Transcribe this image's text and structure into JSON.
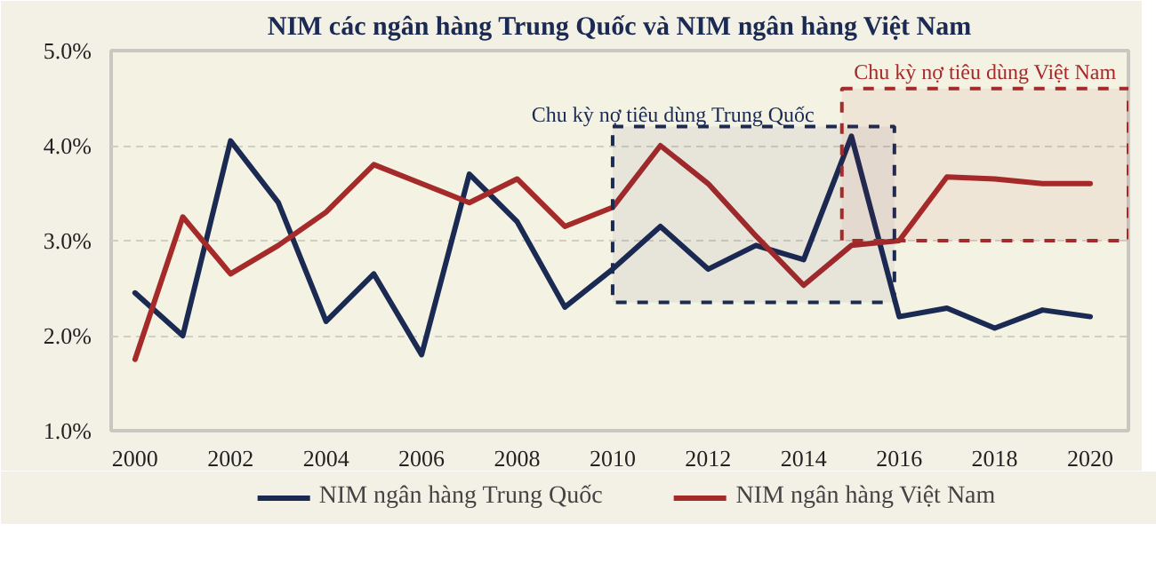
{
  "chart_data": {
    "type": "line",
    "title": "NIM các ngân hàng Trung Quốc và NIM ngân hàng Việt Nam",
    "x": [
      2000,
      2001,
      2002,
      2003,
      2004,
      2005,
      2006,
      2007,
      2008,
      2009,
      2010,
      2011,
      2012,
      2013,
      2014,
      2015,
      2016,
      2017,
      2018,
      2019,
      2020
    ],
    "series": [
      {
        "name": "NIM ngân hàng Trung Quốc",
        "color": "#1b2a52",
        "values": [
          2.45,
          2.0,
          4.05,
          3.4,
          2.15,
          2.65,
          1.8,
          3.7,
          3.2,
          2.3,
          2.7,
          3.15,
          2.7,
          2.95,
          2.8,
          4.1,
          2.2,
          2.29,
          2.08,
          2.27,
          2.2
        ]
      },
      {
        "name": "NIM ngân hàng Việt Nam",
        "color": "#a52a2a",
        "values": [
          1.75,
          3.25,
          2.65,
          2.95,
          3.3,
          3.8,
          3.6,
          3.4,
          3.65,
          3.15,
          3.35,
          4.0,
          3.6,
          3.05,
          2.53,
          2.95,
          3.0,
          3.67,
          3.65,
          3.6,
          3.6
        ]
      }
    ],
    "xlim": [
      1999.5,
      2020.8
    ],
    "xticks": [
      2000,
      2002,
      2004,
      2006,
      2008,
      2010,
      2012,
      2014,
      2016,
      2018,
      2020
    ],
    "ylim": [
      1.0,
      5.0
    ],
    "yticks": [
      {
        "value": 1.0,
        "label": "1.0%"
      },
      {
        "value": 2.0,
        "label": "2.0%"
      },
      {
        "value": 3.0,
        "label": "3.0%"
      },
      {
        "value": 4.0,
        "label": "4.0%"
      },
      {
        "value": 5.0,
        "label": "5.0%"
      }
    ],
    "grid": "y",
    "legend": "bottom",
    "line_style": "solid",
    "marker": "none",
    "bands": [
      {
        "axis": "x",
        "from": 2010,
        "to": 2015.9,
        "label": "Chu kỳ nợ tiêu dùng Trung Quốc",
        "color": "#1b2a52"
      },
      {
        "axis": "x",
        "from": 2014.8,
        "to": 2020.8,
        "label": "Chu kỳ nợ tiêu dùng Việt Nam",
        "color": "#a52a2a"
      }
    ]
  }
}
